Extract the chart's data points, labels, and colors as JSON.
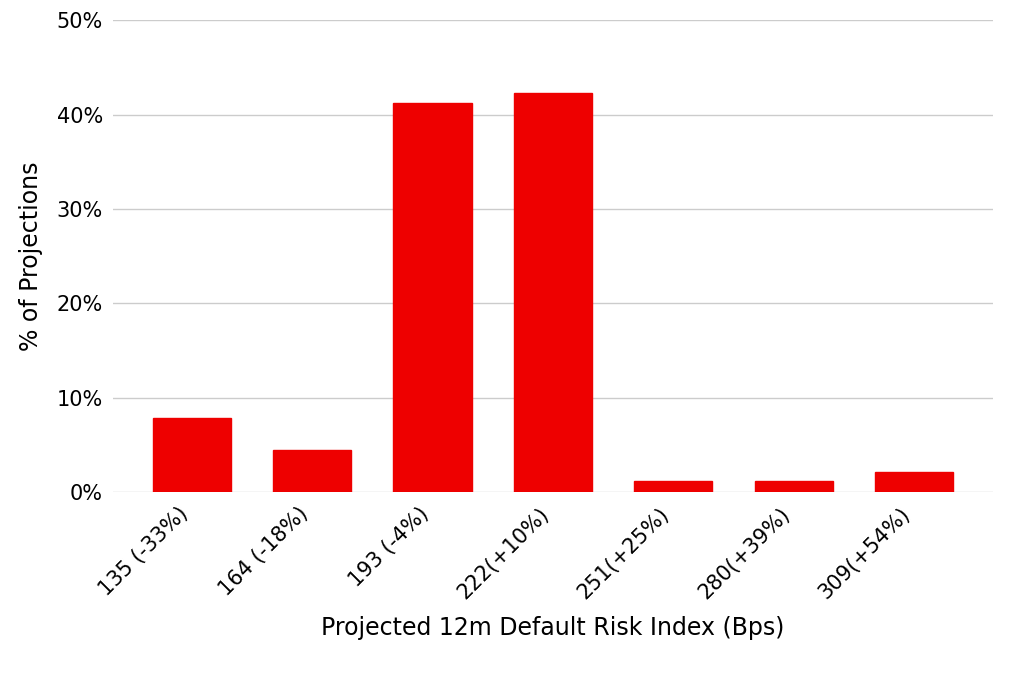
{
  "categories": [
    "135 (-33%)",
    "164 (-18%)",
    "193 (-4%)",
    "222(+10%)",
    "251(+25%)",
    "280(+39%)",
    "309(+54%)"
  ],
  "values": [
    7.8,
    4.4,
    41.2,
    42.3,
    1.1,
    1.1,
    2.1
  ],
  "bar_color": "#EE0000",
  "ylabel": "% of Projections",
  "xlabel": "Projected 12m Default Risk Index (Bps)",
  "ylim": [
    0,
    50
  ],
  "yticks": [
    0,
    10,
    20,
    30,
    40,
    50
  ],
  "ytick_labels": [
    "0%",
    "10%",
    "20%",
    "30%",
    "40%",
    "50%"
  ],
  "background_color": "#FFFFFF",
  "grid_color": "#CCCCCC",
  "label_fontsize": 17,
  "tick_fontsize": 15,
  "bar_width": 0.65
}
